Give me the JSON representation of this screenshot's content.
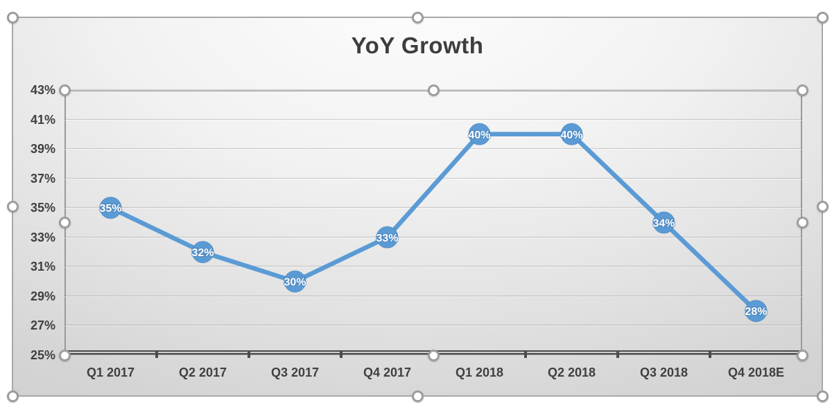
{
  "chart": {
    "state": "selected",
    "plot_area_state": "selected"
  },
  "chart_data": {
    "type": "line",
    "title": "YoY Growth",
    "categories": [
      "Q1 2017",
      "Q2 2017",
      "Q3 2017",
      "Q4 2017",
      "Q1 2018",
      "Q2 2018",
      "Q3 2018",
      "Q4 2018E"
    ],
    "series": [
      {
        "name": "YoY Growth",
        "values": [
          35,
          32,
          30,
          33,
          40,
          40,
          34,
          28
        ]
      }
    ],
    "data_labels": [
      "35%",
      "32%",
      "30%",
      "33%",
      "40%",
      "40%",
      "34%",
      "28%"
    ],
    "xlabel": "",
    "ylabel": "",
    "ylim": [
      25,
      43
    ],
    "ytick_step": 2,
    "ytick_labels": [
      "25%",
      "27%",
      "29%",
      "31%",
      "33%",
      "35%",
      "37%",
      "39%",
      "41%",
      "43%"
    ],
    "grid": true,
    "legend": "none",
    "colors": {
      "line": "#5B9BD5",
      "marker": "#5B9BD5",
      "data_label_text": "#ffffff",
      "data_label_shadow": "#3e75a8",
      "title_text": "#3d3d3d",
      "axis_text": "#404040",
      "axis_line": "#4c4c4c",
      "selection_handle": "#9d9d9d",
      "chart_border": "#a8a8a8"
    }
  }
}
